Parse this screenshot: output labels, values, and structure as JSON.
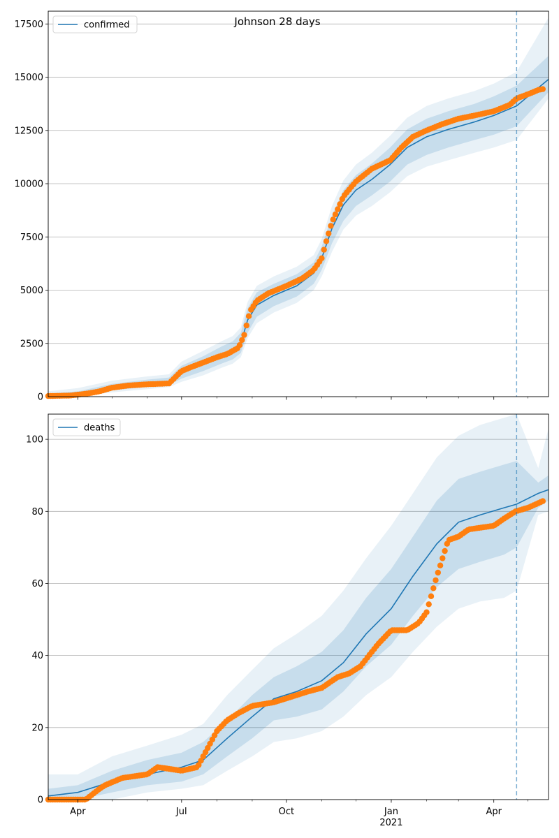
{
  "figure_title": "Johnson 28 days",
  "colors": {
    "model_line": "#1f77b4",
    "observed": "#ff7f0e",
    "band": "#1f77b4",
    "grid": "#b0b0b0",
    "forecast_line": "#1f77b4"
  },
  "x_axis": {
    "tick_labels": [
      "Apr",
      "Jul",
      "Oct",
      "Jan",
      "Apr"
    ],
    "tick_dates": [
      "2020-04-01",
      "2020-07-01",
      "2020-10-01",
      "2021-01-01",
      "2021-04-01"
    ],
    "year_label": "2021",
    "range": [
      "2020-03-06",
      "2021-05-19"
    ],
    "forecast_start": "2021-04-21"
  },
  "chart_data": [
    {
      "type": "line",
      "legend": "confirmed",
      "legend_position": "top-left",
      "ylim": [
        0,
        18100
      ],
      "y_ticks": [
        "0",
        "2500",
        "5000",
        "7500",
        "10000",
        "12500",
        "15000",
        "17500"
      ],
      "y_tick_values": [
        0,
        2500,
        5000,
        7500,
        10000,
        12500,
        15000,
        17500
      ],
      "grid": "y",
      "model": {
        "x": [
          "2020-03-06",
          "2020-04-01",
          "2020-05-01",
          "2020-06-01",
          "2020-06-20",
          "2020-07-01",
          "2020-07-20",
          "2020-08-05",
          "2020-08-15",
          "2020-08-22",
          "2020-08-28",
          "2020-09-05",
          "2020-09-20",
          "2020-10-10",
          "2020-10-25",
          "2020-11-01",
          "2020-11-10",
          "2020-11-20",
          "2020-12-01",
          "2020-12-15",
          "2020-12-31",
          "2021-01-15",
          "2021-02-01",
          "2021-02-20",
          "2021-03-15",
          "2021-04-01",
          "2021-04-21",
          "2021-05-19"
        ],
        "y": [
          30,
          100,
          420,
          600,
          700,
          1150,
          1550,
          1950,
          2150,
          2500,
          3600,
          4300,
          4750,
          5200,
          5800,
          6500,
          7900,
          9000,
          9700,
          10200,
          10900,
          11700,
          12200,
          12550,
          12900,
          13200,
          13650,
          14900
        ],
        "bands": [
          {
            "lower": [
              0,
              40,
              300,
              450,
              550,
              850,
              1200,
              1550,
              1750,
              2050,
              3000,
              3750,
              4250,
              4700,
              5300,
              5950,
              7200,
              8250,
              8950,
              9450,
              10100,
              10900,
              11350,
              11700,
              12050,
              12300,
              12700,
              14300
            ],
            "upper": [
              150,
              250,
              600,
              800,
              900,
              1450,
              1900,
              2350,
              2600,
              3000,
              4150,
              4900,
              5300,
              5750,
              6300,
              7050,
              8500,
              9700,
              10400,
              10950,
              11700,
              12550,
              13050,
              13400,
              13750,
              14100,
              14600,
              16000
            ]
          },
          {
            "lower": [
              0,
              0,
              200,
              350,
              450,
              700,
              1000,
              1350,
              1550,
              1850,
              2750,
              3450,
              3950,
              4400,
              5000,
              5650,
              6800,
              7850,
              8500,
              8950,
              9600,
              10350,
              10800,
              11100,
              11450,
              11700,
              12050,
              14000
            ],
            "upper": [
              250,
              400,
              750,
              950,
              1050,
              1650,
              2150,
              2600,
              2850,
              3250,
              4450,
              5200,
              5650,
              6100,
              6650,
              7400,
              8950,
              10150,
              10900,
              11450,
              12250,
              13100,
              13650,
              14000,
              14350,
              14700,
              15250,
              17800
            ]
          }
        ]
      },
      "observed": {
        "x": [
          "2020-03-06",
          "2020-03-25",
          "2020-04-10",
          "2020-04-20",
          "2020-05-01",
          "2020-05-15",
          "2020-06-01",
          "2020-06-20",
          "2020-07-01",
          "2020-07-10",
          "2020-07-20",
          "2020-08-01",
          "2020-08-10",
          "2020-08-15",
          "2020-08-20",
          "2020-08-25",
          "2020-08-30",
          "2020-09-05",
          "2020-09-15",
          "2020-10-01",
          "2020-10-15",
          "2020-10-25",
          "2020-11-01",
          "2020-11-05",
          "2020-11-10",
          "2020-11-20",
          "2020-12-01",
          "2020-12-15",
          "2020-12-31",
          "2021-01-10",
          "2021-01-20",
          "2021-02-01",
          "2021-02-15",
          "2021-03-01",
          "2021-03-15",
          "2021-04-01",
          "2021-04-15",
          "2021-04-21",
          "2021-05-01",
          "2021-05-10",
          "2021-05-15"
        ],
        "y": [
          30,
          50,
          150,
          250,
          420,
          520,
          580,
          620,
          1200,
          1400,
          1600,
          1850,
          2000,
          2150,
          2300,
          2900,
          4000,
          4500,
          4850,
          5200,
          5550,
          5950,
          6500,
          7300,
          8200,
          9400,
          10100,
          10700,
          11100,
          11700,
          12200,
          12500,
          12800,
          13050,
          13200,
          13400,
          13700,
          14000,
          14200,
          14400,
          14450
        ]
      }
    },
    {
      "type": "line",
      "legend": "deaths",
      "legend_position": "top-left",
      "ylim": [
        0,
        107
      ],
      "y_ticks": [
        "0",
        "20",
        "40",
        "60",
        "80",
        "100"
      ],
      "y_tick_values": [
        0,
        20,
        40,
        60,
        80,
        100
      ],
      "grid": "y",
      "model": {
        "x": [
          "2020-03-06",
          "2020-04-01",
          "2020-05-01",
          "2020-06-01",
          "2020-07-01",
          "2020-07-20",
          "2020-08-10",
          "2020-09-01",
          "2020-09-20",
          "2020-10-10",
          "2020-11-01",
          "2020-11-20",
          "2020-12-10",
          "2021-01-01",
          "2021-01-20",
          "2021-02-10",
          "2021-03-01",
          "2021-03-20",
          "2021-04-10",
          "2021-04-21",
          "2021-05-10",
          "2021-05-19"
        ],
        "y": [
          1,
          2,
          5,
          7,
          9,
          11,
          17,
          23,
          28,
          30,
          33,
          38,
          46,
          53,
          62,
          71,
          77,
          79,
          81,
          82,
          85,
          86
        ],
        "bands": [
          {
            "lower": [
              0,
              0,
              2,
              4,
              5,
              7,
              12,
              17,
              22,
              23,
              25,
              30,
              37,
              43,
              51,
              59,
              64,
              66,
              68,
              70,
              81,
              83
            ],
            "upper": [
              3,
              4,
              8,
              11,
              13,
              16,
              22,
              29,
              34,
              37,
              41,
              47,
              56,
              64,
              73,
              83,
              89,
              91,
              93,
              94,
              88,
              90
            ]
          },
          {
            "lower": [
              0,
              0,
              0,
              2,
              3,
              4,
              8,
              12,
              16,
              17,
              19,
              23,
              29,
              34,
              41,
              48,
              53,
              55,
              56,
              58,
              79,
              80
            ],
            "upper": [
              7,
              7,
              12,
              15,
              18,
              21,
              29,
              36,
              42,
              46,
              51,
              58,
              67,
              76,
              85,
              95,
              101,
              104,
              106,
              107,
              92,
              103
            ]
          }
        ]
      },
      "observed": {
        "x": [
          "2020-03-06",
          "2020-04-08",
          "2020-04-12",
          "2020-04-20",
          "2020-04-25",
          "2020-05-10",
          "2020-06-01",
          "2020-06-10",
          "2020-07-01",
          "2020-07-15",
          "2020-07-20",
          "2020-08-01",
          "2020-08-10",
          "2020-08-20",
          "2020-09-01",
          "2020-09-20",
          "2020-10-10",
          "2020-10-20",
          "2020-11-01",
          "2020-11-15",
          "2020-11-25",
          "2020-12-05",
          "2020-12-15",
          "2020-12-20",
          "2021-01-01",
          "2021-01-15",
          "2021-01-25",
          "2021-02-01",
          "2021-02-10",
          "2021-02-20",
          "2021-03-01",
          "2021-03-10",
          "2021-04-01",
          "2021-04-10",
          "2021-04-20",
          "2021-05-01",
          "2021-05-15"
        ],
        "y": [
          0,
          0,
          1,
          3,
          4,
          6,
          7,
          9,
          8,
          9,
          12,
          19,
          22,
          24,
          26,
          27,
          29,
          30,
          31,
          34,
          35,
          37,
          41,
          43,
          47,
          47,
          49,
          52,
          62,
          72,
          73,
          75,
          76,
          78,
          80,
          81,
          83
        ]
      }
    }
  ]
}
